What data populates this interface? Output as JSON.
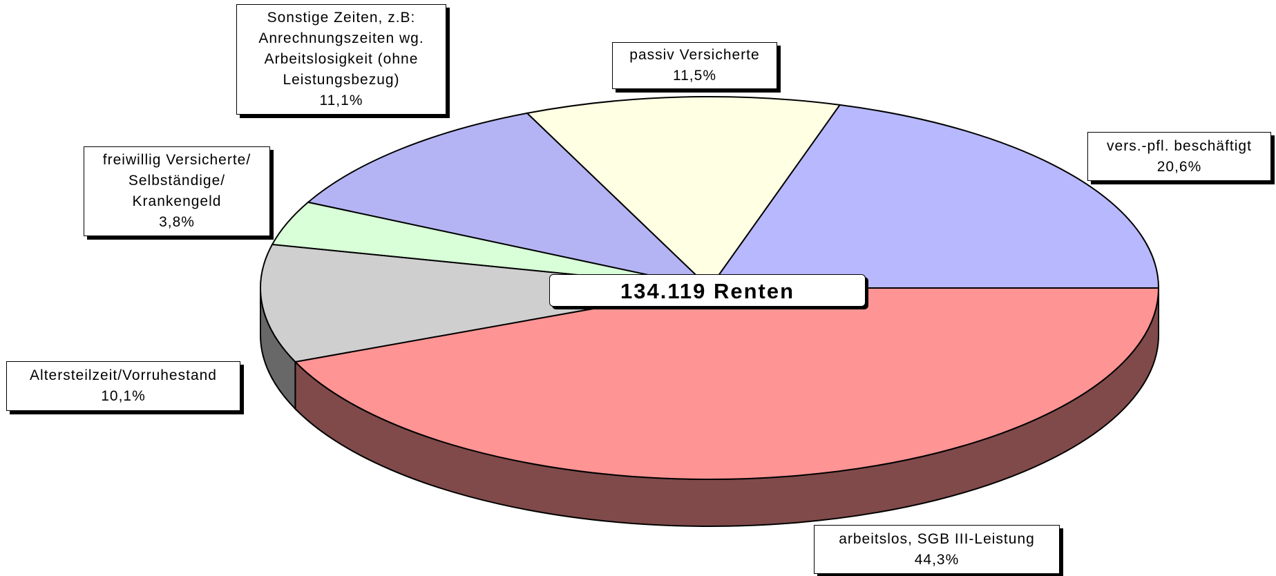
{
  "chart_data": {
    "type": "pie3d",
    "annotation": "134.119 Renten",
    "categories": [
      "vers.-pfl. beschäftigt",
      "passiv Versicherte",
      "Sonstige Zeiten, z.B:\nAnrechnungszeiten wg.\nArbeitslosigkeit (ohne\nLeistungsbezug)",
      "freiwillig Versicherte/\nSelbständige/\nKrankengeld",
      "Altersteilzeit/Vorruhestand",
      "arbeitslos, SGB III-Leistung"
    ],
    "values": [
      20.6,
      11.5,
      11.1,
      3.8,
      10.1,
      44.3
    ],
    "value_labels": [
      "20,6%",
      "11,5%",
      "11,1%",
      "3,8%",
      "10,1%",
      "44,3%"
    ],
    "colors": [
      "#b8b8ff",
      "#ffffe4",
      "#b4b4f4",
      "#d8ffd8",
      "#cfcfcf",
      "#ff9494"
    ]
  }
}
